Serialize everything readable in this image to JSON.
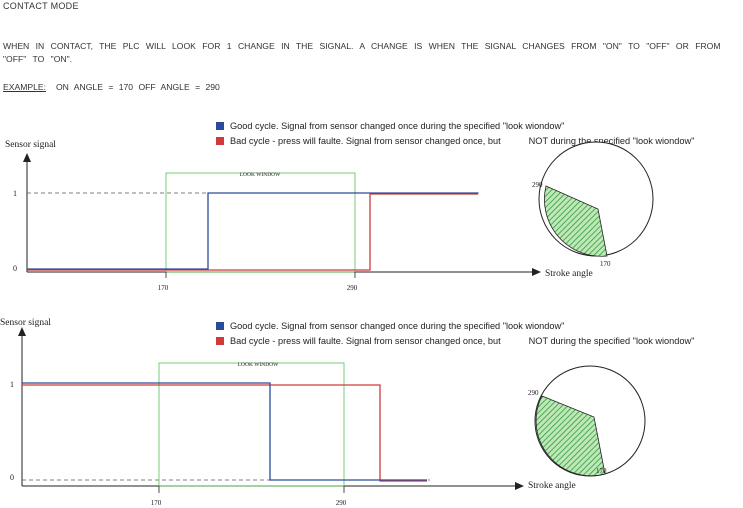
{
  "header": {
    "title": "CONTACT MODE",
    "description": "WHEN IN CONTACT, THE PLC WILL LOOK FOR 1 CHANGE IN THE SIGNAL. A CHANGE IS WHEN THE SIGNAL CHANGES FROM \"ON\" TO \"OFF\" OR FROM \"OFF\" TO \"ON\".",
    "example_label": "EXAMPLE:",
    "example_text": "ON ANGLE = 170    OFF ANGLE = 290"
  },
  "legend": {
    "good": "Good cycle. Signal from sensor changed once during the specified \"look wiondow\"",
    "bad_part1": "Bad cycle - press will faulte. Signal from sensor changed once, but",
    "bad_part2": "NOT during the specified \"look wiondow\""
  },
  "colors": {
    "good": "#2a4a9b",
    "bad": "#d03a3a",
    "window": "#55c255",
    "axis": "#222222"
  },
  "diagram_top": {
    "y_axis_label": "Sensor signal",
    "x_axis_label": "Stroke angle",
    "y_tick_high": "1",
    "y_tick_low": "0",
    "window_label": "LOOK WINDOW",
    "window_start": "170",
    "window_end": "290",
    "dial_start_label": "290",
    "dial_end_label": "170"
  },
  "diagram_bottom": {
    "y_axis_label": "Sensor signal",
    "x_axis_label": "Stroke angle",
    "y_tick_high": "1",
    "y_tick_low": "0",
    "window_label": "LOOK WINDOW",
    "window_start": "170",
    "window_end": "290",
    "dial_start_label": "290",
    "dial_end_label": "170"
  }
}
